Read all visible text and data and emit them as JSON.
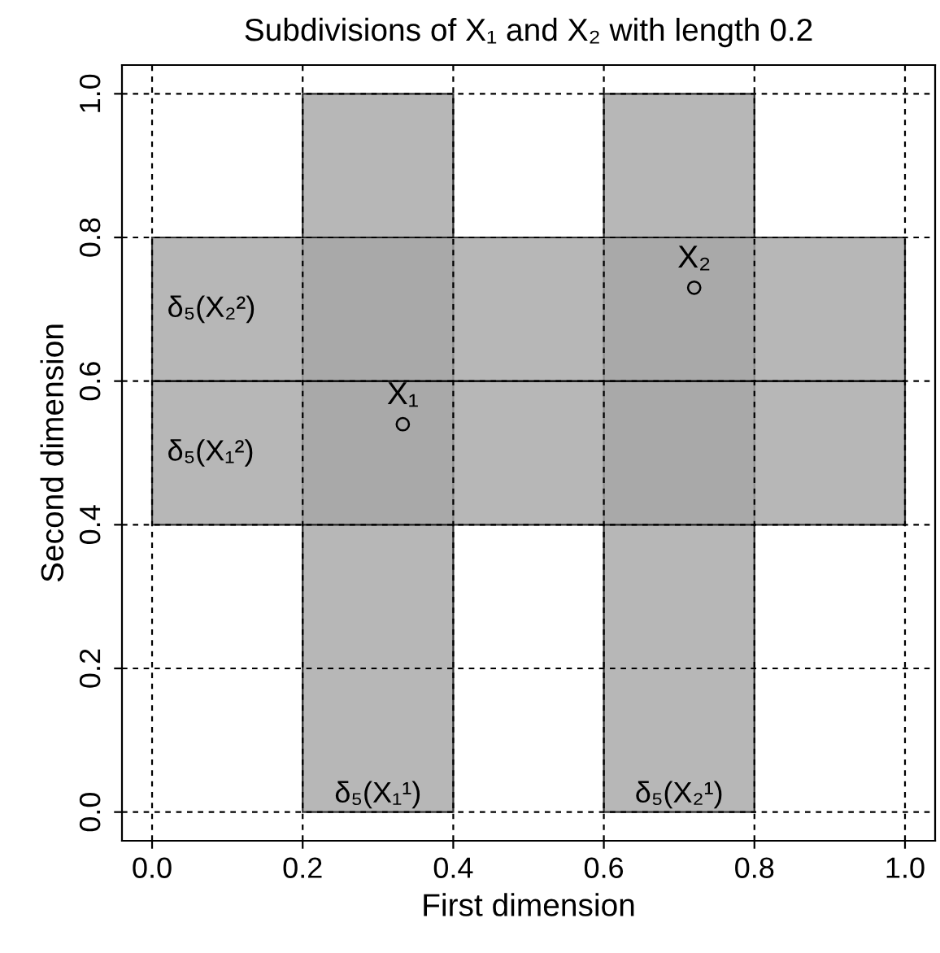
{
  "chart_data": {
    "type": "scatter",
    "title": "Subdivisions of X₁ and X₂ with length 0.2",
    "xlabel": "First dimension",
    "ylabel": "Second dimension",
    "x": [
      0.333,
      0.72
    ],
    "series": [
      {
        "color": "#000000",
        "values": [
          0.54,
          0.73
        ],
        "marker": "circle"
      }
    ],
    "annotations": [
      {
        "text": "X₁",
        "x": 0.333,
        "y": 0.54
      },
      {
        "text": "X₂",
        "x": 0.72,
        "y": 0.73
      }
    ],
    "bands": [
      {
        "axis": "x",
        "from": 0.2,
        "to": 0.4,
        "label": "δ₅(X₁¹)",
        "color": "#a6a6a6"
      },
      {
        "axis": "x",
        "from": 0.6,
        "to": 0.8,
        "label": "δ₅(X₂¹)",
        "color": "#a6a6a6"
      },
      {
        "axis": "y",
        "from": 0.4,
        "to": 0.6,
        "label": "δ₅(X₁²)",
        "color": "#a6a6a6"
      },
      {
        "axis": "y",
        "from": 0.6,
        "to": 0.8,
        "label": "δ₅(X₂²)",
        "color": "#a6a6a6"
      }
    ],
    "xlim": [
      -0.04,
      1.04
    ],
    "ylim": [
      -0.04,
      1.04
    ],
    "xticks": [
      {
        "value": 0,
        "label": "0.0"
      },
      0.2,
      0.4,
      0.6,
      0.8,
      {
        "value": 1,
        "label": "1.0"
      }
    ],
    "yticks": [
      {
        "value": 0,
        "label": "0.0"
      },
      0.2,
      0.4,
      0.6,
      0.8,
      {
        "value": 1,
        "label": "1.0"
      }
    ],
    "grid": true,
    "legend": false
  }
}
